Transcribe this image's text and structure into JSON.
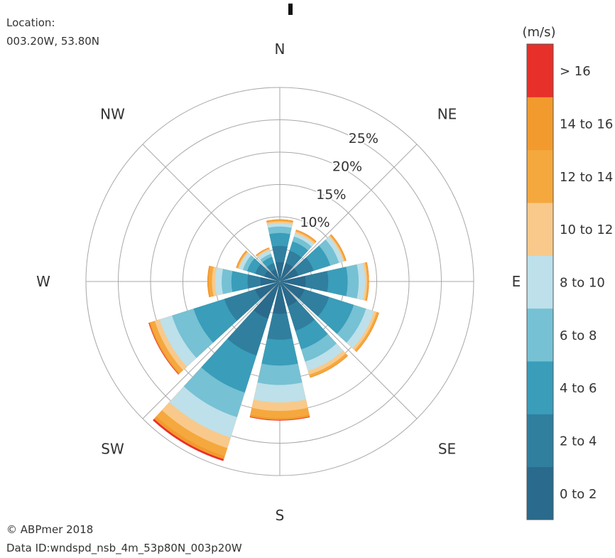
{
  "location": {
    "label": "Location:",
    "coords": "003.20W, 53.80N"
  },
  "footer": {
    "copyright": "© ABPmer 2018",
    "data_id": "Data ID:wndspd_nsb_4m_53p80N_003p20W"
  },
  "chart_data": {
    "type": "wind-rose",
    "directions": [
      "N",
      "NE",
      "E",
      "SE",
      "S",
      "SW",
      "W",
      "NW"
    ],
    "sector_centers_deg": [
      0,
      30,
      60,
      90,
      120,
      150,
      180,
      210,
      240,
      270,
      300,
      330
    ],
    "radial_unit": "%",
    "rlim": [
      0,
      30
    ],
    "ring_values": [
      5,
      10,
      15,
      20,
      25,
      30
    ],
    "ring_labels": [
      "10%",
      "15%",
      "20%",
      "25%"
    ],
    "legend": {
      "title": "(m/s)",
      "bins": [
        {
          "label": "0 to 2",
          "color": "#2a6a8c"
        },
        {
          "label": "2 to 4",
          "color": "#307f9f"
        },
        {
          "label": "4 to 6",
          "color": "#3a9dba"
        },
        {
          "label": "6 to 8",
          "color": "#76c1d4"
        },
        {
          "label": "8 to 10",
          "color": "#bde0ea"
        },
        {
          "label": "10 to 12",
          "color": "#f8c98a"
        },
        {
          "label": "12 to 14",
          "color": "#f5a83d"
        },
        {
          "label": "14 to 16",
          "color": "#f29a2e"
        },
        {
          "label": "> 16",
          "color": "#e8302a"
        }
      ]
    },
    "cumulative_percent": [
      [
        3.0,
        5.5,
        7.5,
        8.5,
        9.0,
        9.3,
        9.5,
        9.6,
        9.6
      ],
      [
        3.0,
        5.0,
        6.5,
        7.3,
        7.8,
        8.1,
        8.3,
        8.4,
        8.4
      ],
      [
        3.0,
        5.5,
        8.2,
        9.6,
        10.3,
        10.5,
        10.7,
        10.8,
        10.8
      ],
      [
        4.0,
        7.5,
        10.5,
        12.2,
        13.2,
        13.5,
        13.7,
        13.8,
        13.8
      ],
      [
        4.0,
        8.0,
        12.0,
        14.0,
        15.3,
        15.7,
        16.0,
        16.1,
        16.1
      ],
      [
        4.0,
        8.0,
        11.0,
        13.0,
        14.5,
        15.1,
        15.5,
        15.6,
        15.6
      ],
      [
        5.0,
        9.0,
        13.0,
        16.0,
        18.7,
        20.0,
        21.1,
        21.4,
        21.5
      ],
      [
        6.0,
        12.0,
        18.0,
        22.0,
        25.3,
        27.0,
        28.3,
        28.8,
        29.1
      ],
      [
        4.0,
        9.0,
        14.0,
        17.5,
        19.5,
        20.3,
        21.0,
        21.2,
        21.3
      ],
      [
        3.0,
        5.0,
        7.5,
        9.0,
        10.0,
        10.5,
        11.0,
        11.2,
        11.2
      ],
      [
        2.5,
        4.0,
        5.3,
        6.0,
        6.6,
        6.8,
        7.0,
        7.1,
        7.1
      ],
      [
        2.0,
        3.0,
        4.0,
        4.5,
        5.1,
        5.3,
        5.4,
        5.5,
        5.5
      ]
    ]
  }
}
